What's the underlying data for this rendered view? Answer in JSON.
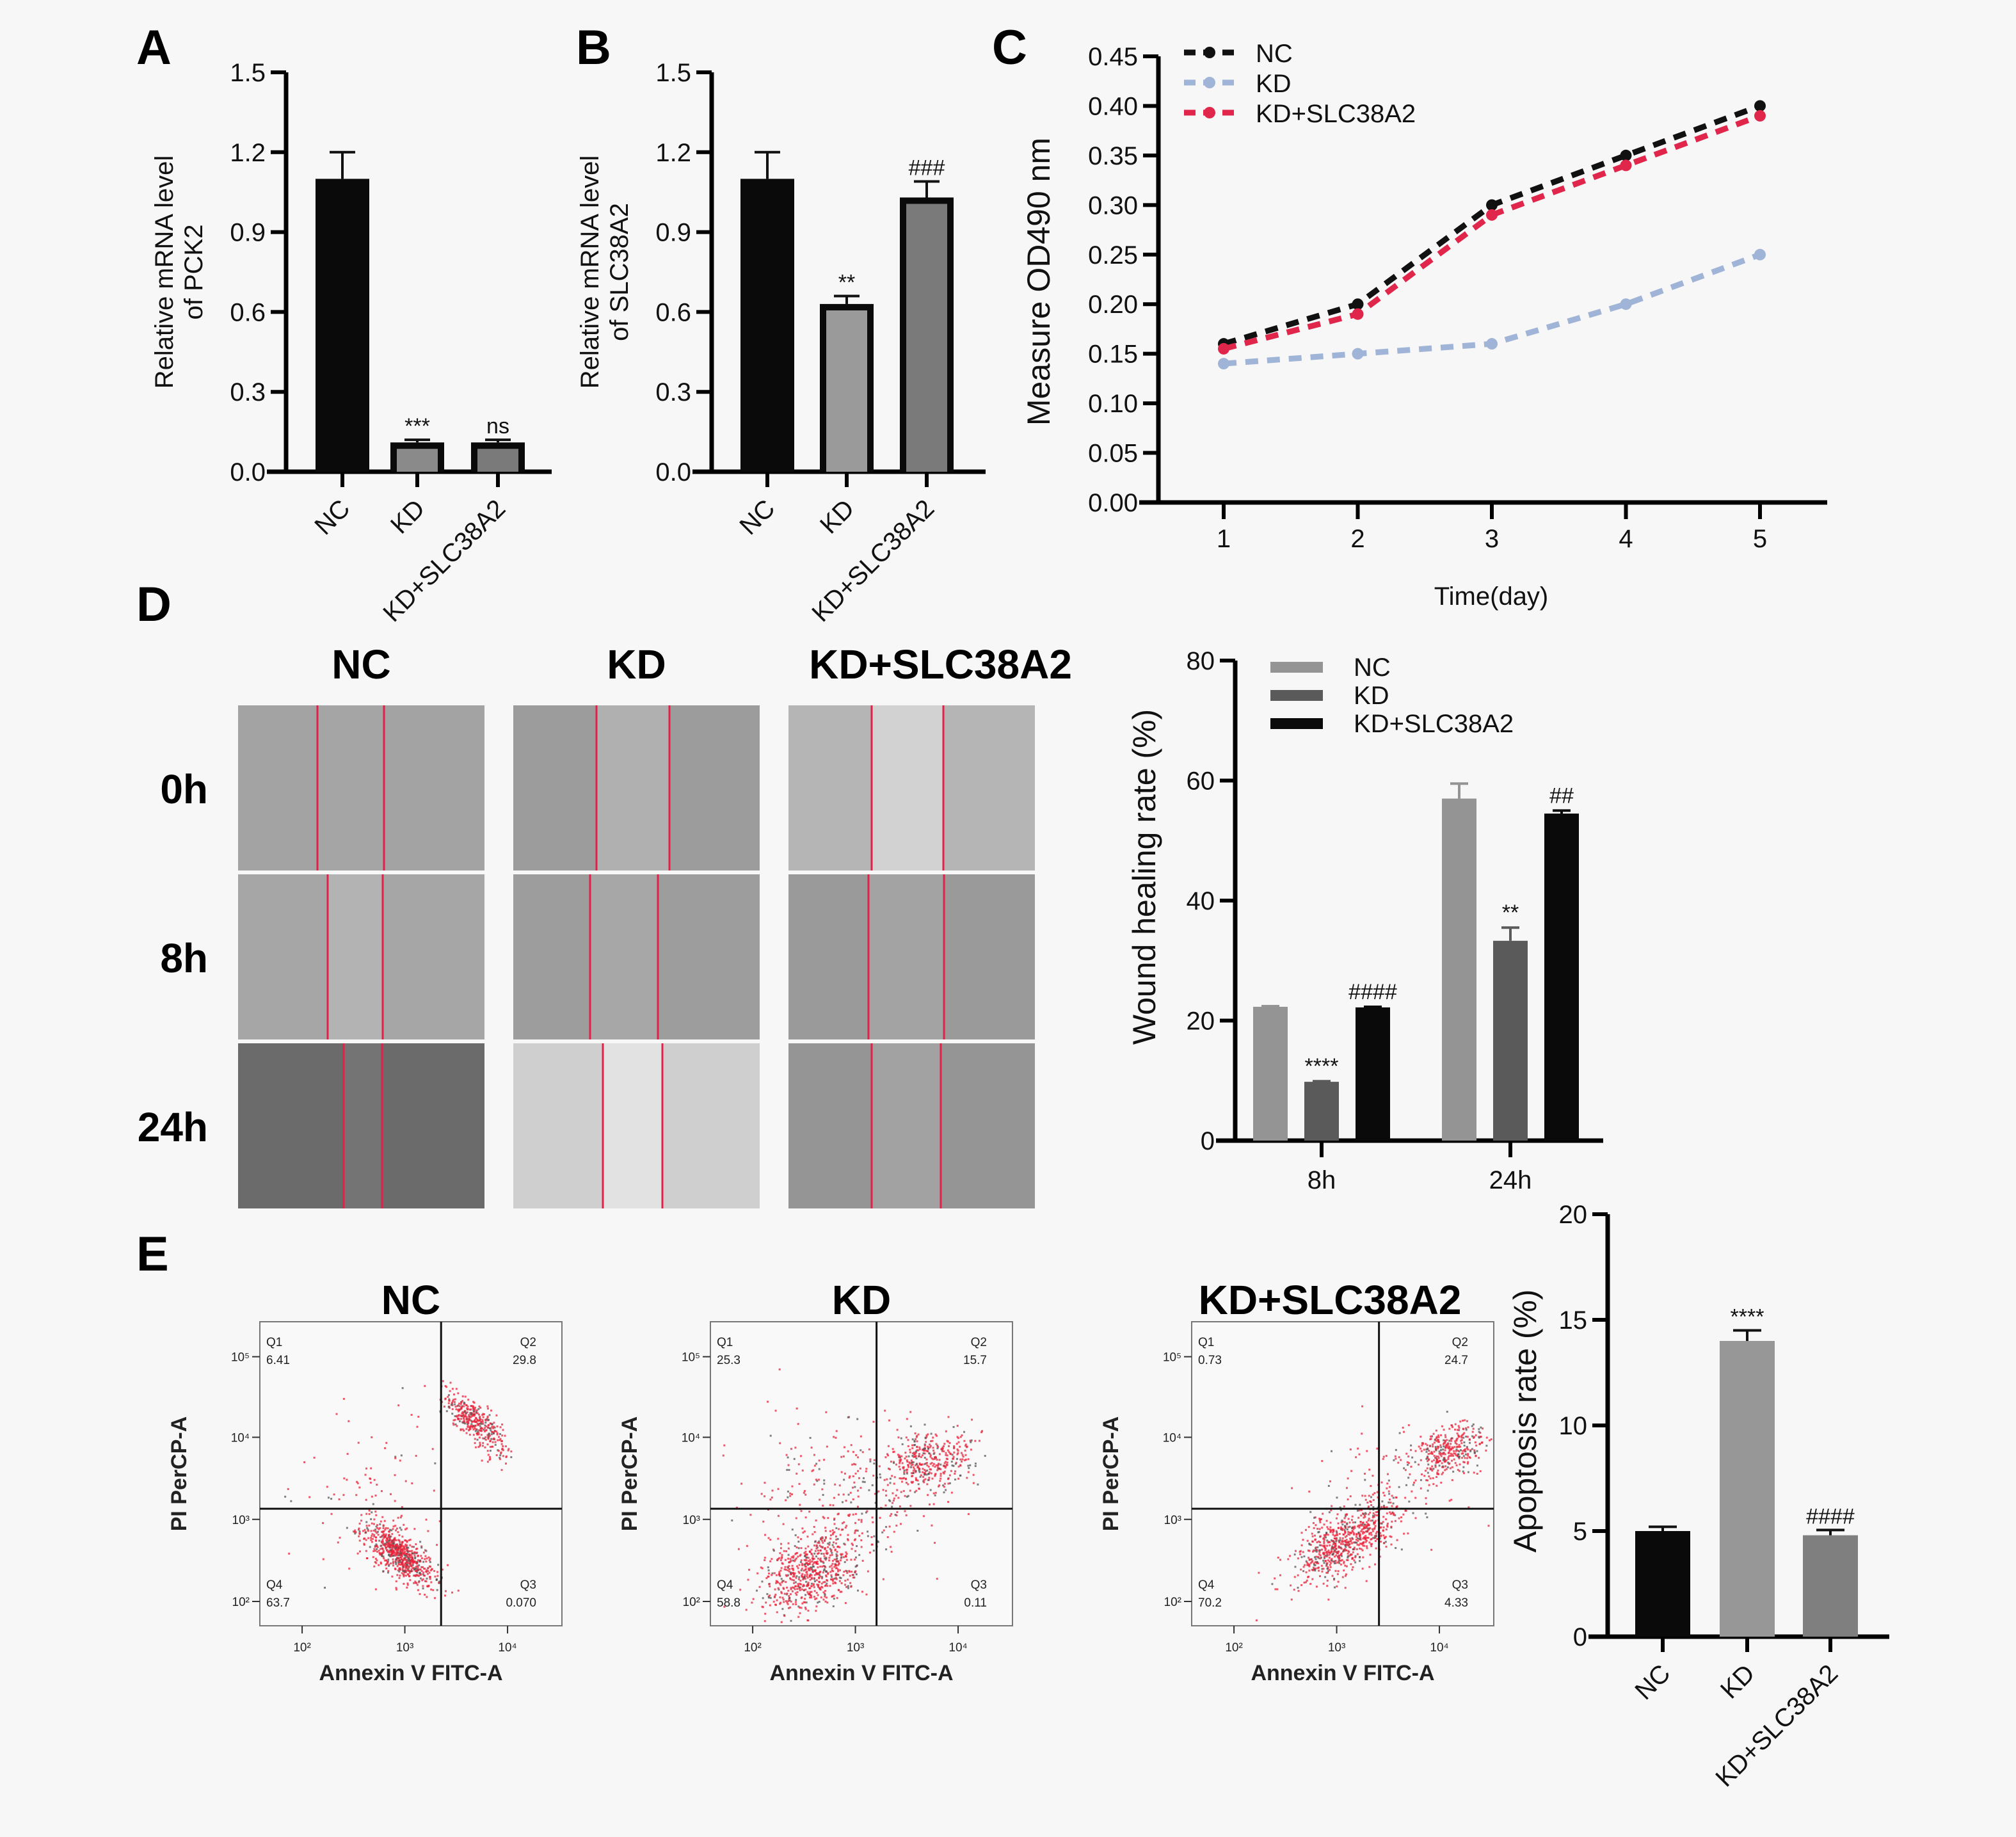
{
  "panels": {
    "A": "A",
    "B": "B",
    "C": "C",
    "D": "D",
    "E": "E"
  },
  "colors": {
    "background": "#f7f7f7",
    "nc_black": "#0a0a0a",
    "kd_grey": "#8a8a8a",
    "rescue_grey": "#7a7a7a",
    "line_nc": "#111111",
    "line_kd": "#9fb4d6",
    "line_rescue": "#e0264a",
    "wound_nc": "#949494",
    "wound_kd": "#5a5a5a",
    "wound_rescue": "#0a0a0a",
    "apop_nc": "#0a0a0a",
    "apop_kd": "#979797",
    "apop_rescue": "#7f7f7f",
    "scratch_line": "#e3204a",
    "flow_dot": "#e8233a"
  },
  "chart_data": [
    {
      "id": "A",
      "type": "bar",
      "title": "",
      "ylabel": [
        "Relative mRNA level",
        "of PCK2"
      ],
      "xlabel": "",
      "categories": [
        "NC",
        "KD",
        "KD+SLC38A2"
      ],
      "values": [
        1.1,
        0.11,
        0.11
      ],
      "error_upper": [
        1.2,
        0.12,
        0.12
      ],
      "annotations": [
        "",
        "***",
        "ns"
      ],
      "ylim": [
        0,
        1.5
      ],
      "yticks": [
        "0.0",
        "0.3",
        "0.6",
        "0.9",
        "1.2",
        "1.5"
      ],
      "ytick_values": [
        0,
        0.3,
        0.6,
        0.9,
        1.2,
        1.5
      ],
      "grid": false
    },
    {
      "id": "B",
      "type": "bar",
      "title": "",
      "ylabel": [
        "Relative mRNA level",
        "of SLC38A2"
      ],
      "xlabel": "",
      "categories": [
        "NC",
        "KD",
        "KD+SLC38A2"
      ],
      "values": [
        1.1,
        0.63,
        1.03
      ],
      "error_upper": [
        1.2,
        0.66,
        1.09
      ],
      "annotations": [
        "",
        "**",
        "###"
      ],
      "ylim": [
        0,
        1.5
      ],
      "yticks": [
        "0.0",
        "0.3",
        "0.6",
        "0.9",
        "1.2",
        "1.5"
      ],
      "ytick_values": [
        0,
        0.3,
        0.6,
        0.9,
        1.2,
        1.5
      ],
      "grid": false
    },
    {
      "id": "C",
      "type": "line",
      "title": "",
      "ylabel": "Measure OD490 nm",
      "xlabel": "Time(day)",
      "x": [
        1,
        2,
        3,
        4,
        5
      ],
      "xticks": [
        "1",
        "2",
        "3",
        "4",
        "5"
      ],
      "series": [
        {
          "name": "NC",
          "values": [
            0.16,
            0.2,
            0.3,
            0.35,
            0.4
          ]
        },
        {
          "name": "KD",
          "values": [
            0.14,
            0.15,
            0.16,
            0.2,
            0.25
          ]
        },
        {
          "name": "KD+SLC38A2",
          "values": [
            0.155,
            0.19,
            0.29,
            0.34,
            0.39
          ]
        }
      ],
      "ylim": [
        0,
        0.45
      ],
      "yticks": [
        "0.00",
        "0.05",
        "0.10",
        "0.15",
        "0.20",
        "0.25",
        "0.30",
        "0.35",
        "0.40",
        "0.45"
      ],
      "ytick_values": [
        0,
        0.05,
        0.1,
        0.15,
        0.2,
        0.25,
        0.3,
        0.35,
        0.4,
        0.45
      ],
      "xlim": [
        0.1,
        5.5
      ],
      "legend": "top-left",
      "grid": false
    },
    {
      "id": "D",
      "type": "bar",
      "title": "",
      "ylabel": "Wound healing rate (%)",
      "xlabel": "",
      "categories": [
        "8h",
        "24h"
      ],
      "series": [
        {
          "name": "NC",
          "values": [
            22.3,
            57.0
          ],
          "error_upper": [
            22.4,
            59.5
          ],
          "annotations": [
            "",
            ""
          ]
        },
        {
          "name": "KD",
          "values": [
            9.8,
            33.3
          ],
          "error_upper": [
            9.9,
            35.5
          ],
          "annotations": [
            "****",
            "**"
          ]
        },
        {
          "name": "KD+SLC38A2",
          "values": [
            22.2,
            54.5
          ],
          "error_upper": [
            22.3,
            55.0
          ],
          "annotations": [
            "####",
            "##"
          ]
        }
      ],
      "ylim": [
        0,
        80
      ],
      "yticks": [
        "0",
        "20",
        "40",
        "60",
        "80"
      ],
      "ytick_values": [
        0,
        20,
        40,
        60,
        80
      ],
      "legend": "top-left",
      "grid": false
    },
    {
      "id": "E",
      "type": "bar",
      "title": "",
      "ylabel": "Apoptosis rate (%)",
      "xlabel": "",
      "categories": [
        "NC",
        "KD",
        "KD+SLC38A2"
      ],
      "values": [
        5.0,
        14.0,
        4.8
      ],
      "error_upper": [
        5.2,
        14.5,
        5.05
      ],
      "annotations": [
        "",
        "****",
        "####"
      ],
      "ylim": [
        0,
        20
      ],
      "yticks": [
        "0",
        "5",
        "10",
        "15",
        "20"
      ],
      "ytick_values": [
        0,
        5,
        10,
        15,
        20
      ],
      "grid": false
    }
  ],
  "wound_images": {
    "columns": [
      "NC",
      "KD",
      "KD+SLC38A2"
    ],
    "rows": [
      "0h",
      "8h",
      "24h"
    ]
  },
  "flow_cytometry": {
    "xlabel": "Annexin V FITC-A",
    "ylabel": "PI PerCP-A",
    "xticks": [
      "10²",
      "10³",
      "10⁴"
    ],
    "yticks": [
      "10²",
      "10³",
      "10⁴",
      "10⁵"
    ],
    "plots": [
      {
        "title": "NC",
        "Q1": "6.41",
        "Q2": "29.8",
        "Q3": "0.070",
        "Q4": "63.7"
      },
      {
        "title": "KD",
        "Q1": "25.3",
        "Q2": "15.7",
        "Q3": "0.11",
        "Q4": "58.8"
      },
      {
        "title": "KD+SLC38A2",
        "Q1": "0.73",
        "Q2": "24.7",
        "Q3": "4.33",
        "Q4": "70.2"
      }
    ],
    "quadrant_labels": [
      "Q1",
      "Q2",
      "Q3",
      "Q4"
    ]
  }
}
